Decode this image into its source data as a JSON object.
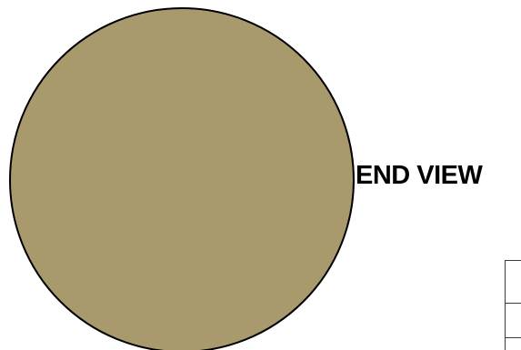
{
  "view": {
    "label": "END VIEW"
  },
  "colors": {
    "part_fill": "#a99a6e",
    "outline": "#000000",
    "table_lines": "#3a3a3a",
    "background": "#ffffff"
  }
}
